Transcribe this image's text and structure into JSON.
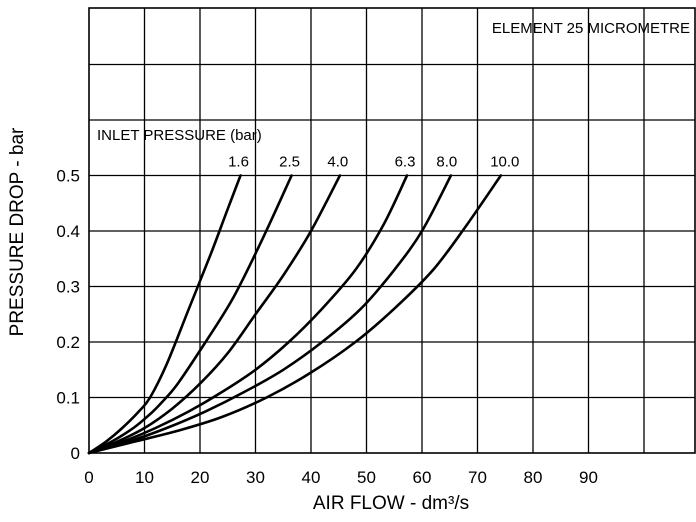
{
  "chart_data": {
    "type": "line",
    "xlabel": "AIR FLOW - dm³/s",
    "ylabel": "PRESSURE DROP - bar",
    "annotations": {
      "element": "ELEMENT 25 MICROMETRE",
      "inlet_pressure": "INLET PRESSURE (bar)"
    },
    "xlim": [
      0,
      100
    ],
    "ylim": [
      0,
      0.5
    ],
    "x_ticks": [
      0,
      10,
      20,
      30,
      40,
      50,
      60,
      70,
      80,
      90
    ],
    "x_tick_labels": [
      "0",
      "10",
      "20",
      "30",
      "40",
      "50",
      "60",
      "70",
      "80",
      "90"
    ],
    "y_ticks": [
      0,
      0.1,
      0.2,
      0.3,
      0.4,
      0.5
    ],
    "y_tick_labels": [
      "0",
      "0.1",
      "0.2",
      "0.3",
      "0.4",
      "0.5"
    ],
    "grid": true,
    "series": [
      {
        "name": "1.6",
        "x": [
          0,
          3,
          6,
          9,
          11,
          14,
          18,
          22,
          25,
          27.3
        ],
        "y": [
          0,
          0.02,
          0.045,
          0.075,
          0.1,
          0.16,
          0.26,
          0.36,
          0.44,
          0.5
        ]
      },
      {
        "name": "2.5",
        "x": [
          0,
          4,
          8,
          11,
          13,
          16,
          21,
          26,
          31,
          36.5
        ],
        "y": [
          0,
          0.02,
          0.045,
          0.07,
          0.09,
          0.125,
          0.2,
          0.28,
          0.38,
          0.5
        ]
      },
      {
        "name": "4.0",
        "x": [
          0,
          5,
          10,
          15,
          20,
          25,
          30,
          35,
          40,
          45.2
        ],
        "y": [
          0,
          0.02,
          0.045,
          0.08,
          0.125,
          0.18,
          0.25,
          0.32,
          0.4,
          0.5
        ]
      },
      {
        "name": "6.3",
        "x": [
          0,
          6,
          12,
          18,
          24,
          30,
          36,
          42,
          48,
          53,
          57.3
        ],
        "y": [
          0,
          0.02,
          0.045,
          0.075,
          0.11,
          0.15,
          0.2,
          0.26,
          0.33,
          0.41,
          0.5
        ]
      },
      {
        "name": "8.0",
        "x": [
          0,
          7,
          14,
          21,
          28,
          35,
          42,
          49,
          55,
          60,
          65.2
        ],
        "y": [
          0,
          0.02,
          0.045,
          0.075,
          0.11,
          0.15,
          0.2,
          0.26,
          0.33,
          0.4,
          0.5
        ]
      },
      {
        "name": "10.0",
        "x": [
          0,
          8,
          16,
          24,
          32,
          40,
          48,
          55,
          62,
          68,
          74.2
        ],
        "y": [
          0,
          0.02,
          0.04,
          0.065,
          0.1,
          0.145,
          0.2,
          0.26,
          0.33,
          0.41,
          0.5
        ]
      }
    ]
  }
}
